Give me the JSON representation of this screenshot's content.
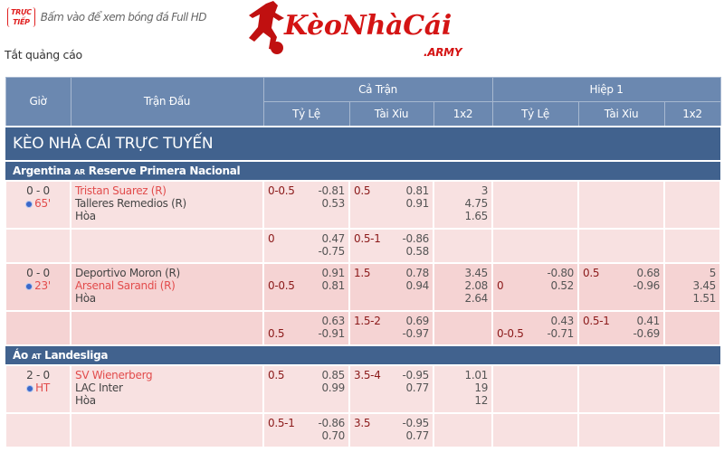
{
  "top": {
    "live_badge": [
      "TRỰC",
      "TIẾP"
    ],
    "live_text": "Bấm vào để xem bóng đá Full HD",
    "logo_text": "KèoNhàCái",
    "logo_sub": ".ARMY",
    "ad_off": "Tắt quảng cáo"
  },
  "header": {
    "time": "Giờ",
    "match": "Trận Đấu",
    "full": "Cả Trận",
    "half": "Hiệp 1",
    "hdp": "Tỷ Lệ",
    "ou": "Tài Xỉu",
    "x12": "1x2"
  },
  "title": "KÈO NHÀ CÁI TRỰC TUYẾN",
  "colors": {
    "header": "#6b88b0",
    "bar": "#41628e",
    "row": "#f8e1e1",
    "row_alt": "#f5d3d3",
    "favorite": "#e24c4c",
    "line": "#8b1a1a"
  },
  "leagues": [
    {
      "country": "Argentina",
      "code": "AR",
      "name": "Reserve Primera Nacional",
      "matches": [
        {
          "score": "0 - 0",
          "minute": "65'",
          "home": "Tristan Suarez (R)",
          "away": "Talleres Remedios (R)",
          "draw": "Hòa",
          "favorite": "home",
          "rows": [
            {
              "ft_hdp": {
                "line": "0-0.5",
                "line_row": 0,
                "odds": [
                  "-0.81",
                  "0.53"
                ]
              },
              "ft_ou": {
                "line": "0.5",
                "line_row": 0,
                "odds": [
                  "0.81",
                  "0.91"
                ]
              },
              "ft_x12": [
                "3",
                "4.75",
                "1.65"
              ],
              "ht_hdp": null,
              "ht_ou": null,
              "ht_x12": null
            },
            {
              "ft_hdp": {
                "line": "0",
                "line_row": 0,
                "odds": [
                  "0.47",
                  "-0.75"
                ]
              },
              "ft_ou": {
                "line": "0.5-1",
                "line_row": 0,
                "odds": [
                  "-0.86",
                  "0.58"
                ]
              },
              "ft_x12": null,
              "ht_hdp": null,
              "ht_ou": null,
              "ht_x12": null
            }
          ]
        },
        {
          "score": "0 - 0",
          "minute": "23'",
          "home": "Deportivo Moron (R)",
          "away": "Arsenal Sarandi (R)",
          "draw": "Hòa",
          "favorite": "away",
          "rows": [
            {
              "ft_hdp": {
                "line": "0-0.5",
                "line_row": 1,
                "odds": [
                  "0.91",
                  "0.81"
                ]
              },
              "ft_ou": {
                "line": "1.5",
                "line_row": 0,
                "odds": [
                  "0.78",
                  "0.94"
                ]
              },
              "ft_x12": [
                "3.45",
                "2.08",
                "2.64"
              ],
              "ht_hdp": {
                "line": "0",
                "line_row": 1,
                "odds": [
                  "-0.80",
                  "0.52"
                ]
              },
              "ht_ou": {
                "line": "0.5",
                "line_row": 0,
                "odds": [
                  "0.68",
                  "-0.96"
                ]
              },
              "ht_x12": [
                "5",
                "3.45",
                "1.51"
              ]
            },
            {
              "ft_hdp": {
                "line": "0.5",
                "line_row": 1,
                "odds": [
                  "0.63",
                  "-0.91"
                ]
              },
              "ft_ou": {
                "line": "1.5-2",
                "line_row": 0,
                "odds": [
                  "0.69",
                  "-0.97"
                ]
              },
              "ft_x12": null,
              "ht_hdp": {
                "line": "0-0.5",
                "line_row": 1,
                "odds": [
                  "0.43",
                  "-0.71"
                ]
              },
              "ht_ou": {
                "line": "0.5-1",
                "line_row": 0,
                "odds": [
                  "0.41",
                  "-0.69"
                ]
              },
              "ht_x12": null
            }
          ]
        }
      ]
    },
    {
      "country": "Áo",
      "code": "AT",
      "name": "Landesliga",
      "matches": [
        {
          "score": "2 - 0",
          "minute": "HT",
          "home": "SV Wienerberg",
          "away": "LAC Inter",
          "draw": "Hòa",
          "favorite": "home",
          "rows": [
            {
              "ft_hdp": {
                "line": "0.5",
                "line_row": 0,
                "odds": [
                  "0.85",
                  "0.99"
                ]
              },
              "ft_ou": {
                "line": "3.5-4",
                "line_row": 0,
                "odds": [
                  "-0.95",
                  "0.77"
                ]
              },
              "ft_x12": [
                "1.01",
                "19",
                "12"
              ],
              "ht_hdp": null,
              "ht_ou": null,
              "ht_x12": null
            },
            {
              "ft_hdp": {
                "line": "0.5-1",
                "line_row": 0,
                "odds": [
                  "-0.86",
                  "0.70"
                ]
              },
              "ft_ou": {
                "line": "3.5",
                "line_row": 0,
                "odds": [
                  "-0.95",
                  "0.77"
                ]
              },
              "ft_x12": null,
              "ht_hdp": null,
              "ht_ou": null,
              "ht_x12": null
            }
          ]
        }
      ]
    }
  ]
}
